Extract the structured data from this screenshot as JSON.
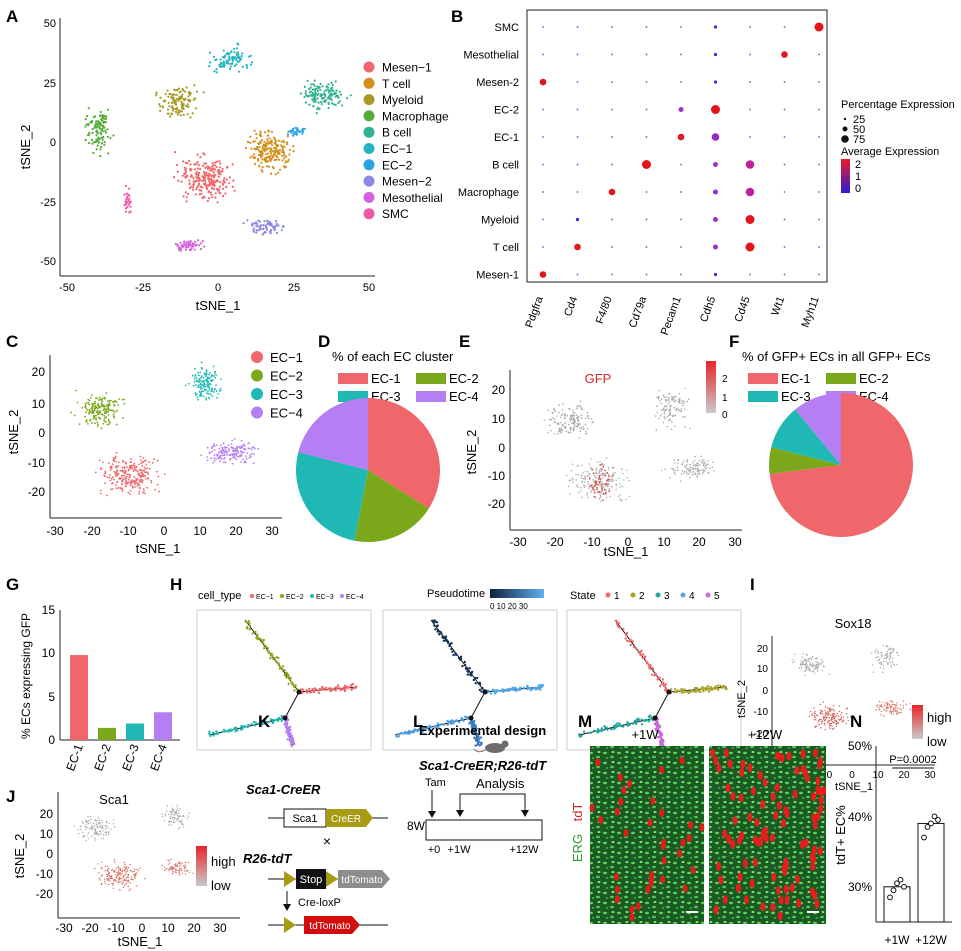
{
  "panels": {
    "A": {
      "letter": "A",
      "xlabel": "tSNE_1",
      "ylabel": "tSNE_2",
      "xticks": [
        "-50",
        "-25",
        "0",
        "25",
        "50"
      ],
      "yticks": [
        "50",
        "25",
        "0",
        "-25",
        "-50"
      ],
      "legend": [
        {
          "label": "Mesen−1",
          "color": "#f0676b"
        },
        {
          "label": "T cell",
          "color": "#d4901c"
        },
        {
          "label": "Myeloid",
          "color": "#a89a26"
        },
        {
          "label": "Macrophage",
          "color": "#52ac37"
        },
        {
          "label": "B cell",
          "color": "#2fb28f"
        },
        {
          "label": "EC−1",
          "color": "#25b4c2"
        },
        {
          "label": "EC−2",
          "color": "#2aa3e4"
        },
        {
          "label": "Mesen−2",
          "color": "#8b87e6"
        },
        {
          "label": "Mesothelial",
          "color": "#d660de"
        },
        {
          "label": "SMC",
          "color": "#ef5aa8"
        }
      ]
    },
    "B": {
      "letter": "B",
      "rows": [
        "SMC",
        "Mesothelial",
        "Mesen-2",
        "EC-2",
        "EC-1",
        "B cell",
        "Macrophage",
        "Myeloid",
        "T cell",
        "Mesen-1"
      ],
      "cols": [
        "Pdgfra",
        "Cd4",
        "F4/80",
        "Cd79a",
        "Pecam1",
        "Cdh5",
        "Cd45",
        "Wt1",
        "Myh11"
      ],
      "dots": [
        [
          "s",
          "s",
          "s",
          "s",
          "s",
          "b1",
          "s",
          "s",
          "rL"
        ],
        [
          "s",
          "s",
          "s",
          "s",
          "s",
          "b1",
          "s",
          "rM",
          "s"
        ],
        [
          "rM",
          "s",
          "s",
          "s",
          "s",
          "b1",
          "s",
          "s",
          "s"
        ],
        [
          "s",
          "s",
          "s",
          "s",
          "pS",
          "rL",
          "s",
          "s",
          "s"
        ],
        [
          "s",
          "s",
          "s",
          "s",
          "rM",
          "pM",
          "s",
          "s",
          "s"
        ],
        [
          "s",
          "s",
          "s",
          "rL",
          "s",
          "pS",
          "pL",
          "s",
          "s"
        ],
        [
          "s",
          "s",
          "rM",
          "s",
          "s",
          "pS",
          "pL",
          "s",
          "s"
        ],
        [
          "s",
          "b1",
          "s",
          "s",
          "s",
          "pS",
          "rL",
          "s",
          "s"
        ],
        [
          "s",
          "rM",
          "s",
          "s",
          "s",
          "pS",
          "rL",
          "s",
          "s"
        ],
        [
          "rM",
          "s",
          "s",
          "s",
          "s",
          "b1",
          "s",
          "s",
          "s"
        ]
      ],
      "size_legend_title": "Percentage Expression",
      "size_legend": [
        "25",
        "50",
        "75"
      ],
      "color_legend_title": "Average Expression",
      "color_ticks": [
        "2",
        "1",
        "0"
      ]
    },
    "C": {
      "letter": "C",
      "xlabel": "tSNE_1",
      "ylabel": "tSNE_2",
      "xticks": [
        "-30",
        "-20",
        "-10",
        "0",
        "10",
        "20",
        "30"
      ],
      "yticks": [
        "20",
        "10",
        "0",
        "-10",
        "-20"
      ],
      "legend": [
        {
          "label": "EC−1",
          "color": "#f0676b"
        },
        {
          "label": "EC−2",
          "color": "#7aa81a"
        },
        {
          "label": "EC−3",
          "color": "#1fb8b4"
        },
        {
          "label": "EC−4",
          "color": "#b57ef2"
        }
      ]
    },
    "D": {
      "letter": "D",
      "title": "% of each EC cluster",
      "legend": [
        "EC-1",
        "EC-2",
        "EC-3",
        "EC-4"
      ]
    },
    "E": {
      "letter": "E",
      "title": "GFP",
      "xlabel": "tSNE_1",
      "ylabel": "tSNE_2",
      "xticks": [
        "-30",
        "-20",
        "-10",
        "0",
        "10",
        "20",
        "30"
      ],
      "yticks": [
        "20",
        "10",
        "0",
        "-10",
        "-20"
      ],
      "color_ticks": [
        "2",
        "1",
        "0"
      ]
    },
    "F": {
      "letter": "F",
      "title": "% of GFP+ ECs in all GFP+ ECs",
      "legend": [
        "EC-1",
        "EC-2",
        "EC-3",
        "EC-4"
      ]
    },
    "G": {
      "letter": "G",
      "ylabel": "% ECs expressing GFP",
      "yticks": [
        "0",
        "5",
        "10",
        "15"
      ]
    },
    "H": {
      "letter": "H",
      "p1_title": "cell_type",
      "p1_legend": [
        "EC−1",
        "EC−2",
        "EC−3",
        "EC−4"
      ],
      "p2_title": "Pseudotime",
      "p2_ticks": "0  10 20 30",
      "p3_title": "State",
      "p3_legend": [
        "1",
        "2",
        "3",
        "4",
        "5"
      ]
    },
    "I": {
      "letter": "I",
      "title": "Sox18",
      "xlabel": "tSNE_1",
      "ylabel": "tSNE_2",
      "xticks": [
        "-30",
        "-20",
        "-10",
        "0",
        "10",
        "20",
        "30"
      ],
      "yticks": [
        "20",
        "10",
        "0",
        "-10",
        "-20"
      ],
      "high": "high",
      "low": "low"
    },
    "J": {
      "letter": "J",
      "title": "Sca1",
      "xlabel": "tSNE_1",
      "ylabel": "tSNE_2",
      "xticks": [
        "-30",
        "-20",
        "-10",
        "0",
        "10",
        "20",
        "30"
      ],
      "yticks": [
        "20",
        "10",
        "0",
        "-10",
        "-20"
      ],
      "high": "high",
      "low": "low"
    },
    "K": {
      "letter": "K",
      "line1": "Sca1-CreER",
      "sca1": "Sca1",
      "creer": "CreER",
      "cross": "×",
      "line2": "R26-tdT",
      "stop": "Stop",
      "tdtomato": "tdTomato",
      "creloxp": "Cre-loxP",
      "tdtomato2": "tdTomato"
    },
    "L": {
      "letter": "L",
      "title": "Experimental design",
      "subtitle": "Sca1-CreER;R26-tdT",
      "tam": "Tam",
      "analysis": "Analysis",
      "age": "8W",
      "ticks": [
        "+0",
        "+1W",
        "+12W"
      ]
    },
    "M": {
      "letter": "M",
      "label_1w": "+1W",
      "label_12w": "+12W",
      "ylabel_tdt": "tdT",
      "ylabel_erg": "ERG"
    },
    "N": {
      "letter": "N",
      "ylabel": "tdT+ EC%",
      "yticks": [
        "30%",
        "40%",
        "50%"
      ],
      "pvalue": "P=0.0002",
      "xlabels": [
        "+1W",
        "+12W"
      ]
    }
  },
  "chart_data": [
    {
      "panel": "D",
      "type": "pie",
      "title": "% of each EC cluster",
      "categories": [
        "EC-1",
        "EC-2",
        "EC-3",
        "EC-4"
      ],
      "values": [
        34,
        19,
        26,
        21
      ],
      "colors": [
        "#f0676b",
        "#7aa81a",
        "#1fb8b4",
        "#b57ef2"
      ]
    },
    {
      "panel": "F",
      "type": "pie",
      "title": "% of GFP+ ECs in all GFP+ ECs",
      "categories": [
        "EC-1",
        "EC-2",
        "EC-3",
        "EC-4"
      ],
      "values": [
        73,
        6,
        10,
        11
      ],
      "colors": [
        "#f0676b",
        "#7aa81a",
        "#1fb8b4",
        "#b57ef2"
      ]
    },
    {
      "panel": "G",
      "type": "bar",
      "categories": [
        "EC-1",
        "EC-2",
        "EC-3",
        "EC-4"
      ],
      "values": [
        9.8,
        1.4,
        1.9,
        3.2
      ],
      "colors": [
        "#f0676b",
        "#7aa81a",
        "#1fb8b4",
        "#b57ef2"
      ],
      "ylabel": "% ECs expressing GFP",
      "ylim": [
        0,
        15
      ]
    },
    {
      "panel": "N",
      "type": "bar",
      "categories": [
        "+1W",
        "+12W"
      ],
      "values": [
        30,
        39
      ],
      "points": [
        [
          28.5,
          29.5,
          30.5,
          31,
          30
        ],
        [
          37,
          38.5,
          39,
          40,
          39.5
        ]
      ],
      "ylabel": "tdT+ EC%",
      "ylim": [
        25,
        50
      ]
    }
  ]
}
